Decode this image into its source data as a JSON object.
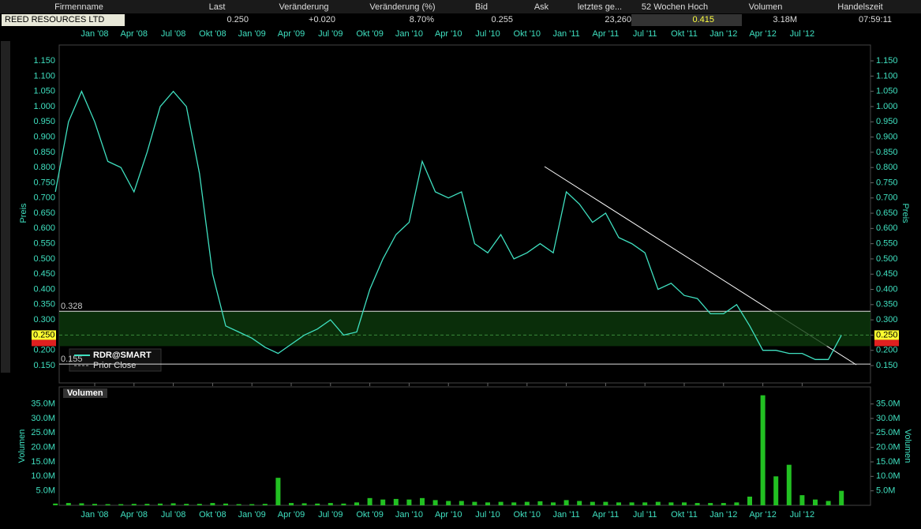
{
  "header": [
    {
      "label": "Firmenname",
      "value": "REED RESOURCES LTD"
    },
    {
      "label": "Last",
      "value": "0.250"
    },
    {
      "label": "Veränderung",
      "value": "+0.020"
    },
    {
      "label": "Veränderung (%)",
      "value": "8.70%"
    },
    {
      "label": "Bid",
      "value": "0.255"
    },
    {
      "label": "Ask"
    },
    {
      "label": "letztes ge...",
      "value": "23,260"
    },
    {
      "label": "52 Wochen Hoch",
      "value": "0.415"
    },
    {
      "label": "Volumen",
      "value": "3.18M"
    },
    {
      "label": "Handelszeit",
      "value": "07:59:11"
    }
  ],
  "chart_data": [
    {
      "type": "line",
      "y_label": "Preis",
      "color": "#3fe0c0",
      "legend": [
        "RDR@SMART",
        "Prior Close"
      ],
      "x": [
        "2007-10",
        "2007-11",
        "2007-12",
        "2008-01",
        "2008-02",
        "2008-03",
        "2008-04",
        "2008-05",
        "2008-06",
        "2008-07",
        "2008-08",
        "2008-09",
        "2008-10",
        "2008-11",
        "2008-12",
        "2009-01",
        "2009-02",
        "2009-03",
        "2009-04",
        "2009-05",
        "2009-06",
        "2009-07",
        "2009-08",
        "2009-09",
        "2009-10",
        "2009-11",
        "2009-12",
        "2010-01",
        "2010-02",
        "2010-03",
        "2010-04",
        "2010-05",
        "2010-06",
        "2010-07",
        "2010-08",
        "2010-09",
        "2010-10",
        "2010-11",
        "2010-12",
        "2011-01",
        "2011-02",
        "2011-03",
        "2011-04",
        "2011-05",
        "2011-06",
        "2011-07",
        "2011-08",
        "2011-09",
        "2011-10",
        "2011-11",
        "2011-12",
        "2012-01",
        "2012-02",
        "2012-03",
        "2012-04",
        "2012-05",
        "2012-06",
        "2012-07",
        "2012-08",
        "2012-09",
        "2012-10"
      ],
      "values": [
        0.72,
        0.95,
        1.05,
        0.95,
        0.82,
        0.8,
        0.72,
        0.85,
        1.0,
        1.05,
        1.0,
        0.78,
        0.45,
        0.28,
        0.26,
        0.24,
        0.21,
        0.19,
        0.22,
        0.25,
        0.27,
        0.3,
        0.25,
        0.26,
        0.4,
        0.5,
        0.58,
        0.62,
        0.82,
        0.72,
        0.7,
        0.72,
        0.55,
        0.52,
        0.58,
        0.5,
        0.52,
        0.55,
        0.52,
        0.72,
        0.68,
        0.62,
        0.65,
        0.57,
        0.55,
        0.52,
        0.4,
        0.42,
        0.38,
        0.37,
        0.32,
        0.32,
        0.35,
        0.28,
        0.2,
        0.2,
        0.19,
        0.19,
        0.17,
        0.17,
        0.25
      ],
      "ylim": [
        0.093,
        1.202
      ],
      "yticks": [
        {
          "value": 0.15,
          "label": "0.150"
        },
        {
          "value": 0.2,
          "label": "0.200"
        },
        {
          "value": 0.25,
          "label": "0.250"
        },
        {
          "value": 0.3,
          "label": "0.300"
        },
        {
          "value": 0.35,
          "label": "0.350"
        },
        {
          "value": 0.4,
          "label": "0.400"
        },
        {
          "value": 0.45,
          "label": "0.450"
        },
        {
          "value": 0.5,
          "label": "0.500"
        },
        {
          "value": 0.55,
          "label": "0.550"
        },
        {
          "value": 0.6,
          "label": "0.600"
        },
        {
          "value": 0.65,
          "label": "0.650"
        },
        {
          "value": 0.7,
          "label": "0.700"
        },
        {
          "value": 0.75,
          "label": "0.750"
        },
        {
          "value": 0.8,
          "label": "0.800"
        },
        {
          "value": 0.85,
          "label": "0.850"
        },
        {
          "value": 0.9,
          "label": "0.900"
        },
        {
          "value": 0.95,
          "label": "0.950"
        },
        {
          "value": 1.0,
          "label": "1.000"
        },
        {
          "value": 1.05,
          "label": "1.050"
        },
        {
          "value": 1.1,
          "label": "1.100"
        },
        {
          "value": 1.15,
          "label": "1.150"
        }
      ],
      "xticks": [
        {
          "value": "2008-01",
          "label": "Jan '08"
        },
        {
          "value": "2008-04",
          "label": "Apr '08"
        },
        {
          "value": "2008-07",
          "label": "Jul '08"
        },
        {
          "value": "2008-10",
          "label": "Okt '08"
        },
        {
          "value": "2009-01",
          "label": "Jan '09"
        },
        {
          "value": "2009-04",
          "label": "Apr '09"
        },
        {
          "value": "2009-07",
          "label": "Jul '09"
        },
        {
          "value": "2009-10",
          "label": "Okt '09"
        },
        {
          "value": "2010-01",
          "label": "Jan '10"
        },
        {
          "value": "2010-04",
          "label": "Apr '10"
        },
        {
          "value": "2010-07",
          "label": "Jul '10"
        },
        {
          "value": "2010-10",
          "label": "Okt '10"
        },
        {
          "value": "2011-01",
          "label": "Jan '11"
        },
        {
          "value": "2011-04",
          "label": "Apr '11"
        },
        {
          "value": "2011-07",
          "label": "Jul '11"
        },
        {
          "value": "2011-10",
          "label": "Okt '11"
        },
        {
          "value": "2012-01",
          "label": "Jan '12"
        },
        {
          "value": "2012-04",
          "label": "Apr '12"
        },
        {
          "value": "2012-07",
          "label": "Jul '12"
        }
      ],
      "levels": [
        {
          "value": 0.328,
          "label": "0.328"
        },
        {
          "value": 0.155,
          "label": "0.155"
        }
      ],
      "last": {
        "value": 0.25,
        "label": "0.250"
      }
    },
    {
      "type": "bar",
      "title": "Volumen",
      "y_label": "Volumen",
      "color": "#22c022",
      "values": [
        0.6,
        0.8,
        0.7,
        0.5,
        0.4,
        0.4,
        0.5,
        0.5,
        0.6,
        0.7,
        0.5,
        0.5,
        0.8,
        0.6,
        0.4,
        0.4,
        0.5,
        9.5,
        0.8,
        0.7,
        0.6,
        0.8,
        0.6,
        1.0,
        2.5,
        2.0,
        2.2,
        2.0,
        2.5,
        1.8,
        1.5,
        1.5,
        1.2,
        1.0,
        1.2,
        1.0,
        1.2,
        1.4,
        1.0,
        1.8,
        1.5,
        1.2,
        1.2,
        1.0,
        1.0,
        1.0,
        1.2,
        1.0,
        1.0,
        0.8,
        0.8,
        0.8,
        1.0,
        3.0,
        38,
        10,
        14,
        3.5,
        2.0,
        1.5,
        5.0
      ],
      "ylim": [
        0,
        40.9
      ],
      "yticks": [
        {
          "value": 5,
          "label": "5.0M"
        },
        {
          "value": 10,
          "label": "10.0M"
        },
        {
          "value": 15,
          "label": "15.0M"
        },
        {
          "value": 20,
          "label": "20.0M"
        },
        {
          "value": 25,
          "label": "25.0M"
        },
        {
          "value": 30,
          "label": "30.0M"
        },
        {
          "value": 35,
          "label": "35.0M"
        }
      ]
    }
  ]
}
